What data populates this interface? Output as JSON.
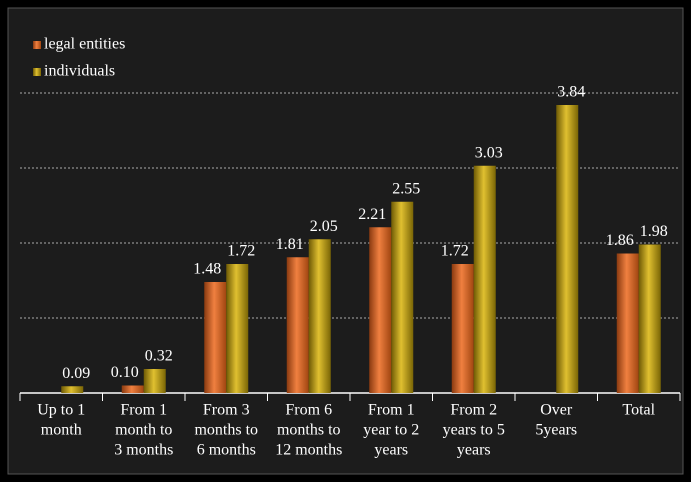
{
  "chart_data": {
    "type": "bar",
    "categories": [
      [
        "Up to 1",
        "month"
      ],
      [
        "From 1",
        "month to",
        "3 months"
      ],
      [
        "From 3",
        "months to",
        "6 months"
      ],
      [
        "From 6",
        "months to",
        "12 months"
      ],
      [
        "From 1",
        "year to 2",
        "years"
      ],
      [
        "From 2",
        "years to 5",
        "years"
      ],
      [
        "Over",
        "5years"
      ],
      [
        "Total"
      ]
    ],
    "series": [
      {
        "name": "legal entities",
        "color": "#d5621f",
        "values": [
          null,
          0.1,
          1.48,
          1.81,
          2.21,
          1.72,
          null,
          1.86
        ],
        "value_labels": [
          null,
          "0.10",
          "1.48",
          "1.81",
          "2.21",
          "1.72",
          null,
          "1.86"
        ]
      },
      {
        "name": "individuals",
        "color": "#b8980a",
        "values": [
          0.09,
          0.32,
          1.72,
          2.05,
          2.55,
          3.03,
          3.84,
          1.98
        ],
        "value_labels": [
          "0.09",
          "0.32",
          "1.72",
          "2.05",
          "2.55",
          "3.03",
          "3.84",
          "1.98"
        ]
      }
    ],
    "ylim": [
      0,
      4
    ],
    "yticks": [
      0,
      1,
      2,
      3,
      4
    ],
    "grid": true,
    "legend": "top-left"
  }
}
